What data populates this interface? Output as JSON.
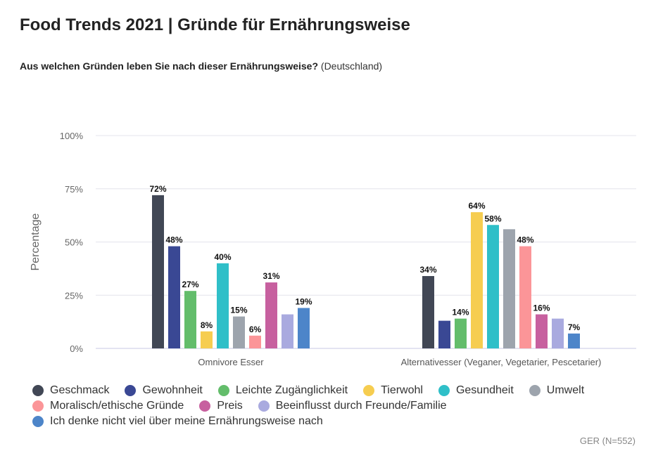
{
  "title": "Food Trends 2021 | Gründe für Ernährungsweise",
  "subtitle": {
    "question": "Aus welchen Gründen leben Sie nach dieser Ernährungsweise?",
    "country": "(Deutschland)"
  },
  "source": "GER (N=552)",
  "chart_data": {
    "type": "bar",
    "title": "Food Trends 2021 | Gründe für Ernährungsweise",
    "ylabel": "Percentage",
    "xlabel": "",
    "ylim": [
      0,
      100
    ],
    "yticks": [
      0,
      25,
      50,
      75,
      100
    ],
    "ytick_labels": [
      "0%",
      "25%",
      "50%",
      "75%",
      "100%"
    ],
    "grid": true,
    "legend_position": "bottom",
    "categories": [
      "Omnivore Esser",
      "Alternativesser (Veganer, Vegetarier, Pescetarier)"
    ],
    "series": [
      {
        "name": "Geschmack",
        "color": "#414755",
        "values": [
          72,
          34
        ],
        "labels": [
          "72%",
          "34%"
        ]
      },
      {
        "name": "Gewohnheit",
        "color": "#3a4894",
        "values": [
          48,
          13
        ],
        "labels": [
          "48%",
          ""
        ]
      },
      {
        "name": "Leichte Zugänglichkeit",
        "color": "#63bd6b",
        "values": [
          27,
          14
        ],
        "labels": [
          "27%",
          "14%"
        ]
      },
      {
        "name": "Tierwohl",
        "color": "#f6cd50",
        "values": [
          8,
          64
        ],
        "labels": [
          "8%",
          "64%"
        ]
      },
      {
        "name": "Gesundheit",
        "color": "#2fbfc8",
        "values": [
          40,
          58
        ],
        "labels": [
          "40%",
          "58%"
        ]
      },
      {
        "name": "Umwelt",
        "color": "#9da4ad",
        "values": [
          15,
          56
        ],
        "labels": [
          "15%",
          ""
        ]
      },
      {
        "name": "Moralisch/ethische Gründe",
        "color": "#fb9598",
        "values": [
          6,
          48
        ],
        "labels": [
          "6%",
          "48%"
        ]
      },
      {
        "name": "Preis",
        "color": "#c7609f",
        "values": [
          31,
          16
        ],
        "labels": [
          "31%",
          "16%"
        ]
      },
      {
        "name": "Beeinflusst durch Freunde/Familie",
        "color": "#a9aadf",
        "values": [
          16,
          14
        ],
        "labels": [
          "",
          ""
        ]
      },
      {
        "name": "Ich denke nicht viel über meine Ernährungsweise nach",
        "color": "#4d85c9",
        "values": [
          19,
          7
        ],
        "labels": [
          "19%",
          "7%"
        ]
      }
    ]
  }
}
